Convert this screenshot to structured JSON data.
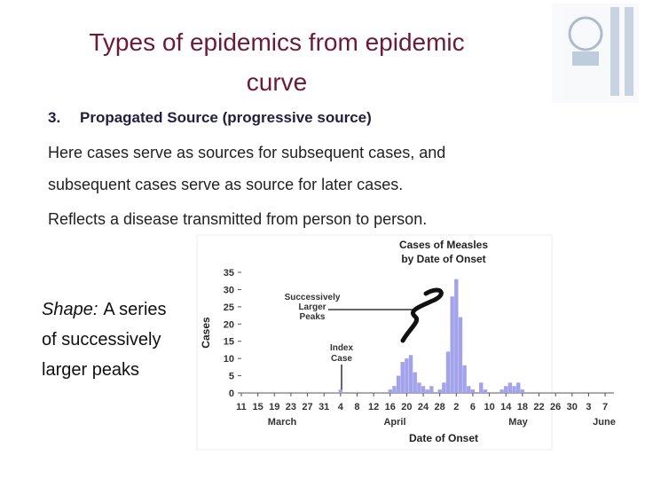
{
  "slide": {
    "title_lines": [
      "Types of epidemics from epidemic",
      "curve"
    ],
    "heading": {
      "number": "3.",
      "text": "Propagated Source (progressive source)"
    },
    "paragraph1_lines": [
      "Here cases serve as sources for subsequent cases, and",
      "subsequent cases serve as source for later cases."
    ],
    "paragraph2": "Reflects a disease transmitted from person to person.",
    "shape_note": {
      "label": "Shape:",
      "lines": [
        "A series",
        "of successively",
        "larger peaks"
      ]
    }
  },
  "chart_data": {
    "type": "bar",
    "title_lines": [
      "Cases of Measles",
      "by Date of Onset"
    ],
    "y_label": "Cases",
    "x_label": "Date of Onset",
    "color": "#a3a3ec",
    "ylim": [
      0,
      35
    ],
    "yticks": [
      0,
      5,
      10,
      15,
      20,
      25,
      30,
      35
    ],
    "months": [
      "March",
      "April",
      "May",
      "June"
    ],
    "annotations": [
      {
        "lines": [
          "Successively",
          "Larger",
          "Peaks"
        ]
      },
      {
        "lines": [
          "Index",
          "Case"
        ]
      }
    ],
    "categories": [
      "11",
      null,
      null,
      null,
      "15",
      null,
      null,
      null,
      "19",
      null,
      null,
      null,
      "23",
      null,
      null,
      null,
      "27",
      null,
      null,
      null,
      "31",
      null,
      null,
      null,
      "4",
      null,
      null,
      null,
      "8",
      null,
      null,
      null,
      "12",
      null,
      null,
      null,
      "16",
      null,
      null,
      null,
      "20",
      null,
      null,
      null,
      "24",
      null,
      null,
      null,
      "28",
      null,
      null,
      null,
      "2",
      null,
      null,
      null,
      "6",
      null,
      null,
      null,
      "10",
      null,
      null,
      null,
      "14",
      null,
      null,
      null,
      "18",
      null,
      null,
      null,
      "22",
      null,
      null,
      null,
      "26",
      null,
      null,
      null,
      "30",
      null,
      null,
      null,
      "3",
      null,
      null,
      null,
      "7"
    ],
    "values": [
      0,
      0,
      0,
      0,
      0,
      0,
      0,
      0,
      0,
      0,
      0,
      0,
      0,
      0,
      0,
      0,
      0,
      0,
      0,
      0,
      0,
      0,
      0,
      0,
      1,
      0,
      0,
      0,
      0,
      0,
      0,
      0,
      0,
      0,
      0,
      0,
      1,
      2,
      5,
      9,
      10,
      11,
      6,
      3,
      2,
      1,
      2,
      0,
      1,
      3,
      12,
      28,
      33,
      22,
      8,
      2,
      1,
      0,
      3,
      1,
      0,
      0,
      0,
      1,
      2,
      3,
      2,
      3,
      1,
      0,
      0,
      0,
      0,
      0,
      0,
      0,
      0,
      0,
      0,
      0,
      0,
      0,
      0,
      0,
      0,
      0,
      0,
      0,
      0
    ]
  }
}
